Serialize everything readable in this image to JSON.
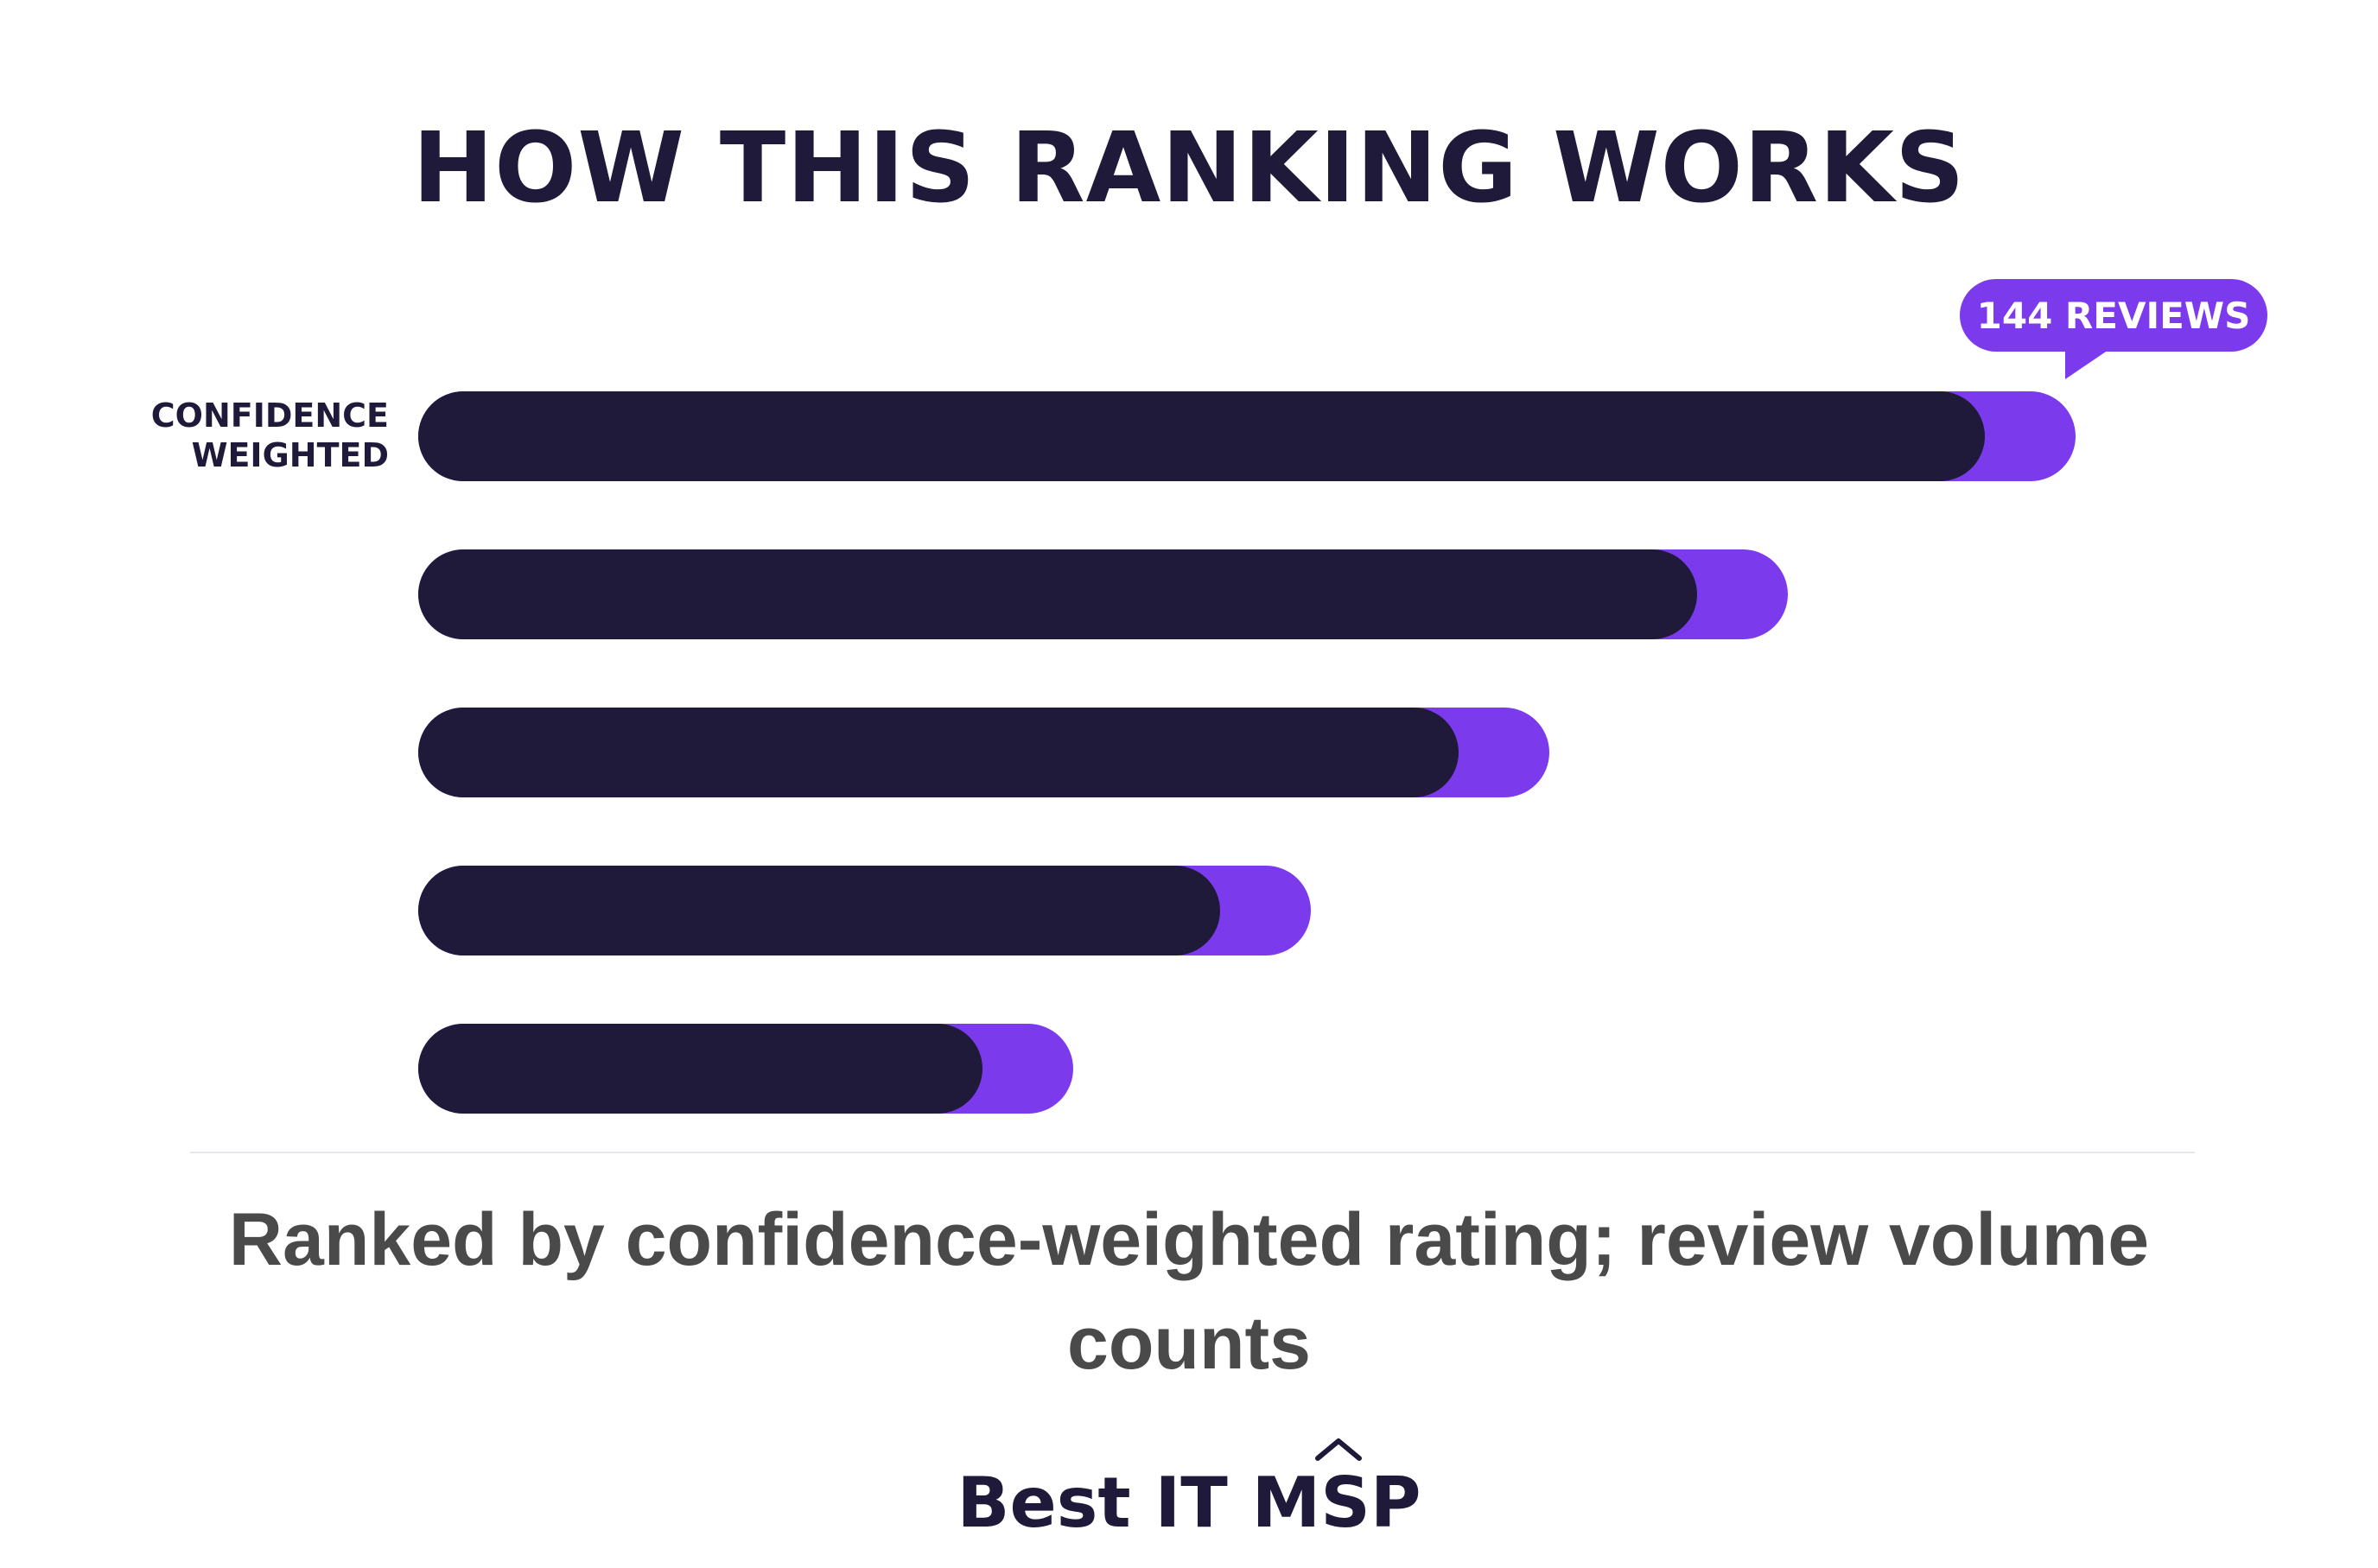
{
  "title": "HOW THIS RANKING WORKS",
  "row_label": "CONFIDENCE\nWEIGHTED",
  "caption": "Ranked by confidence-weighted rating; review volume counts",
  "brand": "Best IT MSP",
  "colors": {
    "bar": "#1f1a3a",
    "accent": "#7c3aed",
    "text": "#4a4a4a"
  },
  "chart_data": {
    "type": "bar",
    "orientation": "horizontal",
    "categories": [
      "",
      "",
      "",
      "",
      ""
    ],
    "series": [
      {
        "values": [
          1813,
          1480,
          1204,
          928,
          653
        ]
      },
      {
        "values": [
          105,
          105,
          105,
          105,
          105
        ]
      }
    ],
    "annotations": [
      {
        "bar_index": 0,
        "text": "144 REVIEWS"
      }
    ]
  }
}
